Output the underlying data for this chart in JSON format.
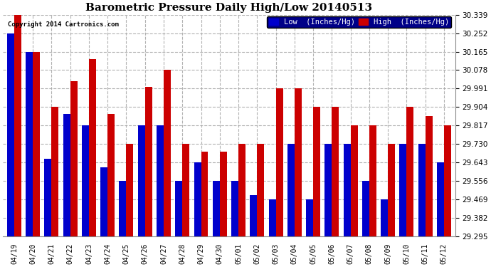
{
  "title": "Barometric Pressure Daily High/Low 20140513",
  "copyright": "Copyright 2014 Cartronics.com",
  "ylabel_right_ticks": [
    29.295,
    29.382,
    29.469,
    29.556,
    29.643,
    29.73,
    29.817,
    29.904,
    29.991,
    30.078,
    30.165,
    30.252,
    30.339
  ],
  "dates": [
    "04/19",
    "04/20",
    "04/21",
    "04/22",
    "04/23",
    "04/24",
    "04/25",
    "04/26",
    "04/27",
    "04/28",
    "04/29",
    "04/30",
    "05/01",
    "05/02",
    "05/03",
    "05/04",
    "05/05",
    "05/06",
    "05/07",
    "05/08",
    "05/09",
    "05/10",
    "05/11",
    "05/12"
  ],
  "low_values": [
    30.252,
    30.165,
    29.66,
    29.87,
    29.817,
    29.62,
    29.556,
    29.817,
    29.817,
    29.556,
    29.643,
    29.556,
    29.556,
    29.49,
    29.469,
    29.73,
    29.469,
    29.73,
    29.73,
    29.556,
    29.469,
    29.73,
    29.73,
    29.643
  ],
  "high_values": [
    30.339,
    30.165,
    29.904,
    30.025,
    30.13,
    29.87,
    29.73,
    30.0,
    30.078,
    29.73,
    29.695,
    29.695,
    29.73,
    29.73,
    29.991,
    29.991,
    29.904,
    29.904,
    29.817,
    29.817,
    29.73,
    29.904,
    29.86,
    29.817
  ],
  "low_color": "#0000cc",
  "high_color": "#cc0000",
  "bg_color": "#ffffff",
  "grid_color": "#aaaaaa",
  "bar_width": 0.38,
  "ylim_min": 29.295,
  "ylim_max": 30.339,
  "legend_low_label": "Low  (Inches/Hg)",
  "legend_high_label": "High  (Inches/Hg)",
  "legend_bg_color": "#000088"
}
